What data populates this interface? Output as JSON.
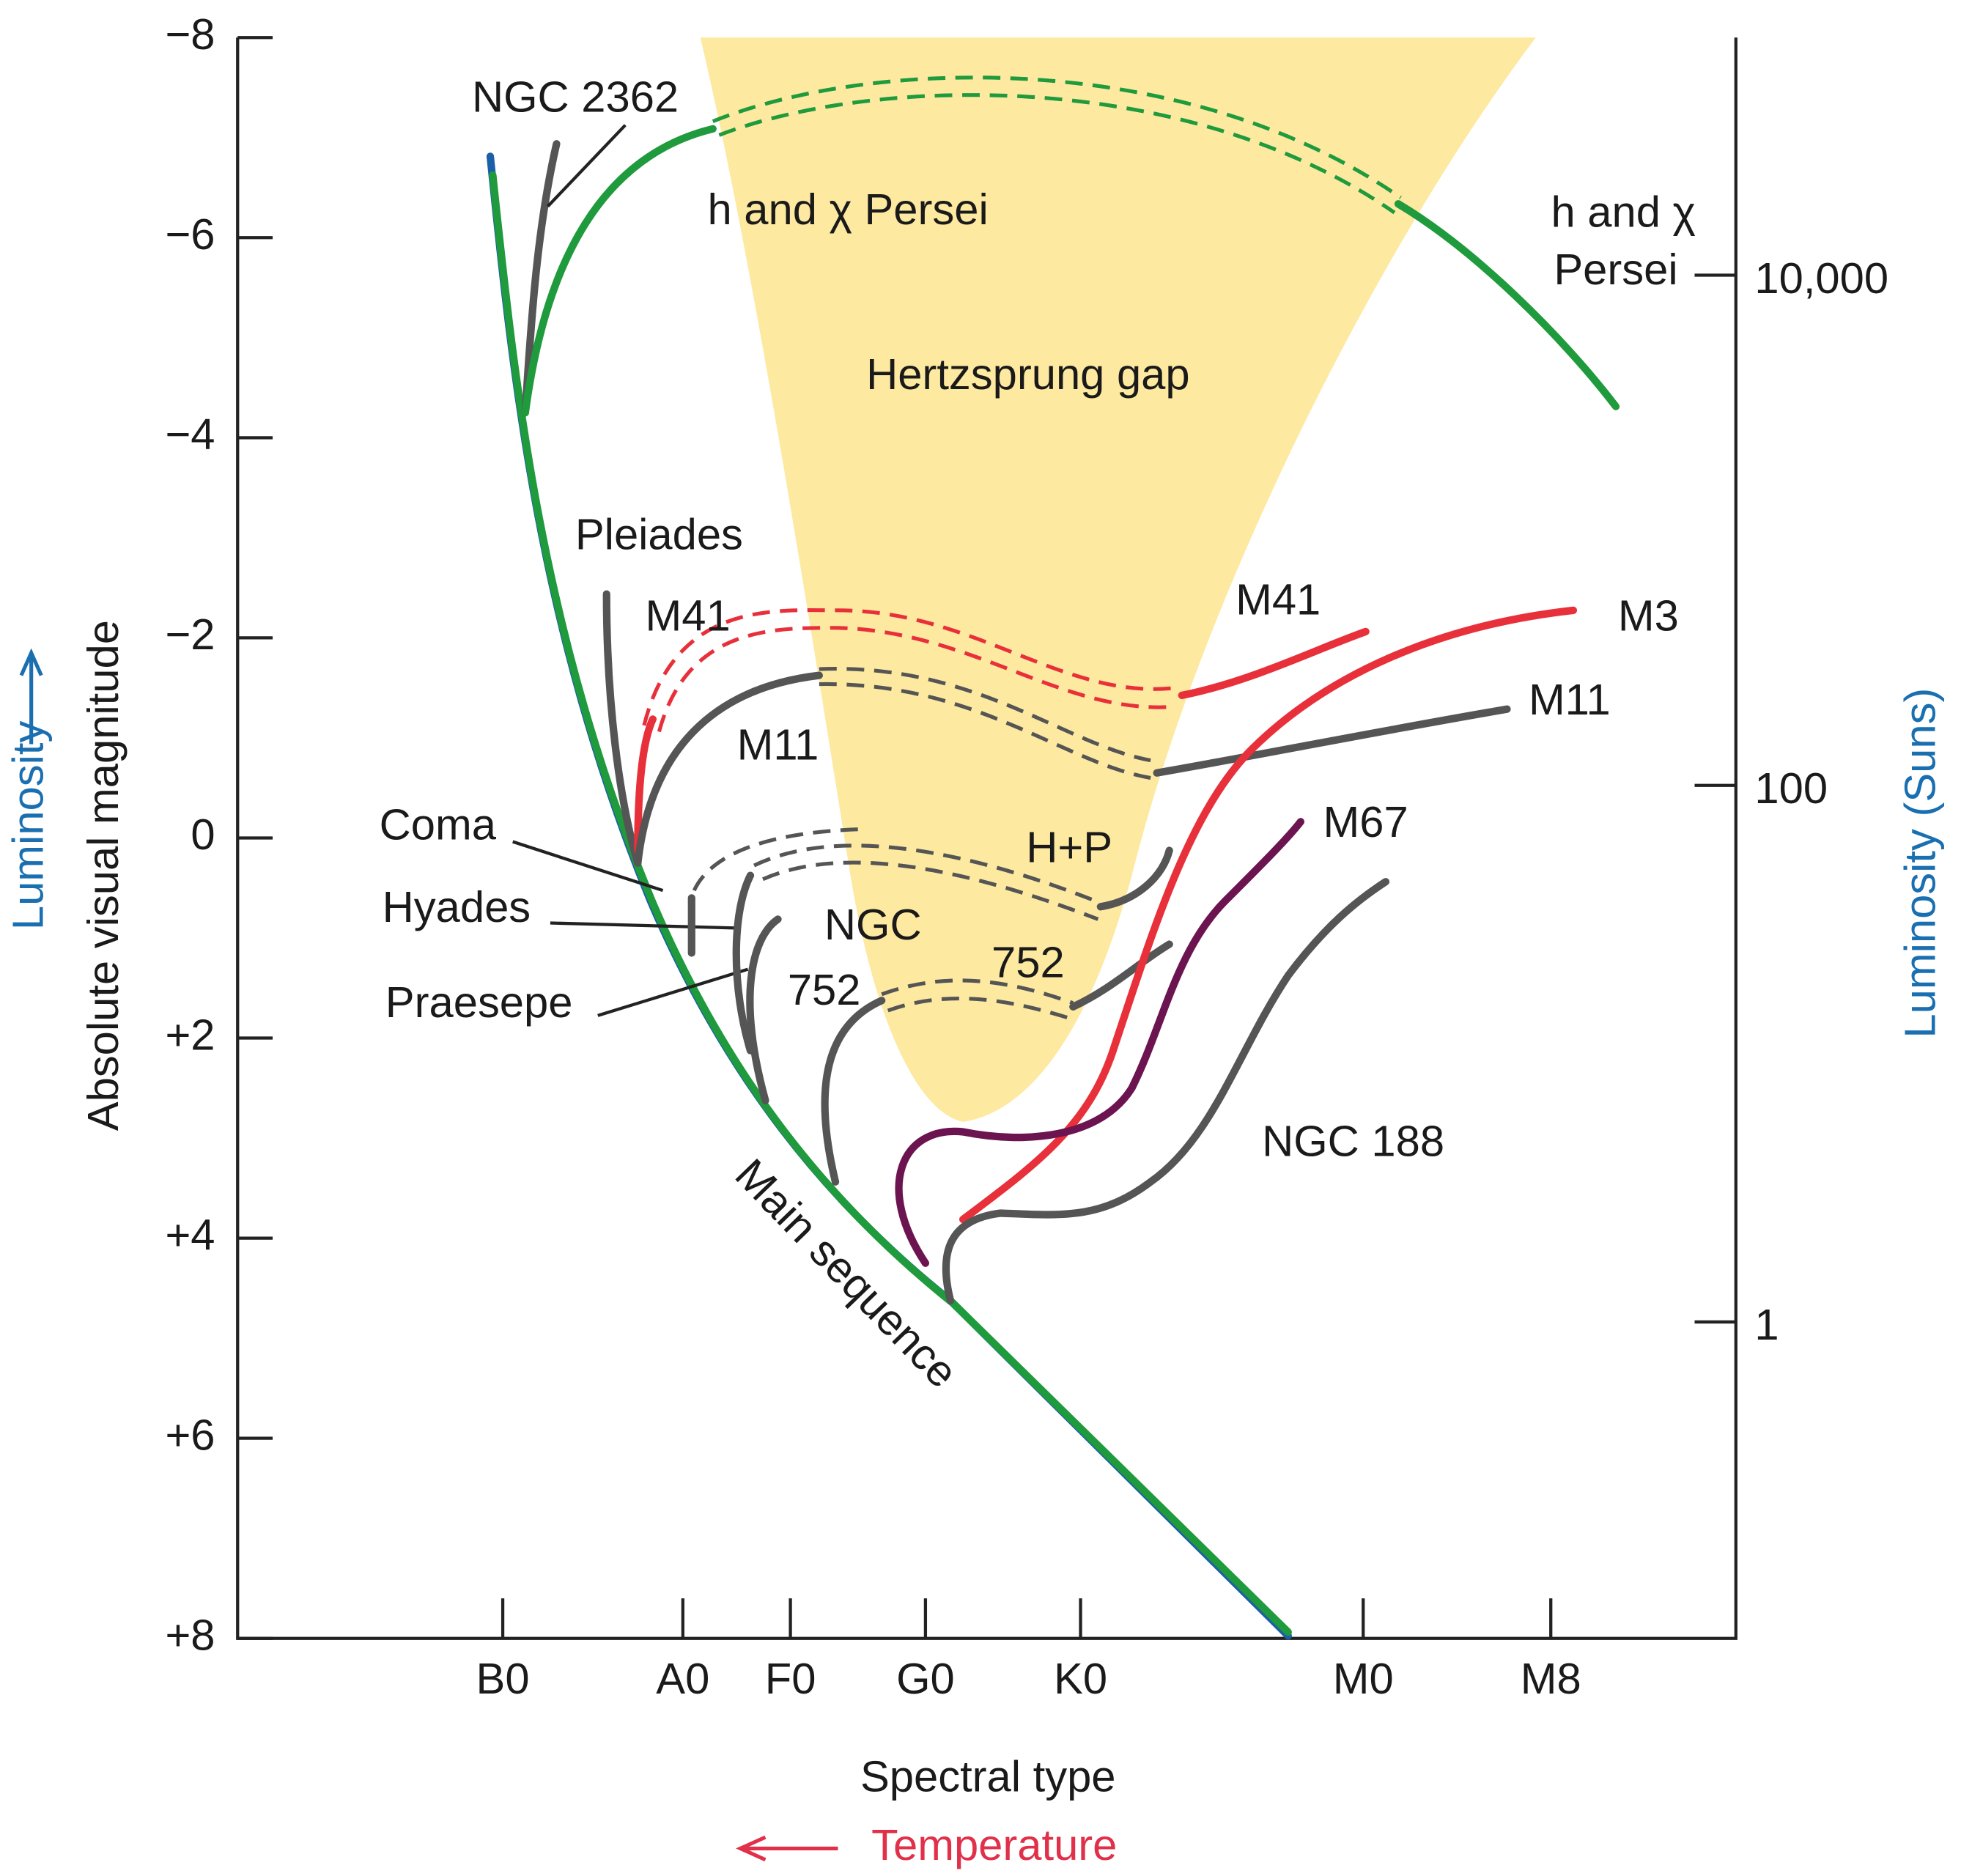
{
  "axes": {
    "left": {
      "label": "Absolute visual magnitude",
      "ticks": [
        "−8",
        "−6",
        "−4",
        "−2",
        "0",
        "+2",
        "+4",
        "+6",
        "+8"
      ]
    },
    "bottom": {
      "label": "Spectral type",
      "ticks": [
        "B0",
        "A0",
        "F0",
        "G0",
        "K0",
        "M0",
        "M8"
      ]
    },
    "right": {
      "label": "Luminosity (Suns)",
      "ticks": [
        "10,000",
        "100",
        "1"
      ]
    }
  },
  "annotations": {
    "luminosity": "Luminosity",
    "temperature": "Temperature",
    "gap": "Hertzsprung gap",
    "main_sequence": "Main sequence"
  },
  "clusters": [
    "NGC 2362",
    "h and χ Persei",
    "h and χ",
    "Persei",
    "Pleiades",
    "M41",
    "M41",
    "M3",
    "M11",
    "M11",
    "Coma",
    "H+P",
    "M67",
    "Hyades",
    "NGC",
    "752",
    "752",
    "Praesepe",
    "NGC 188"
  ]
}
